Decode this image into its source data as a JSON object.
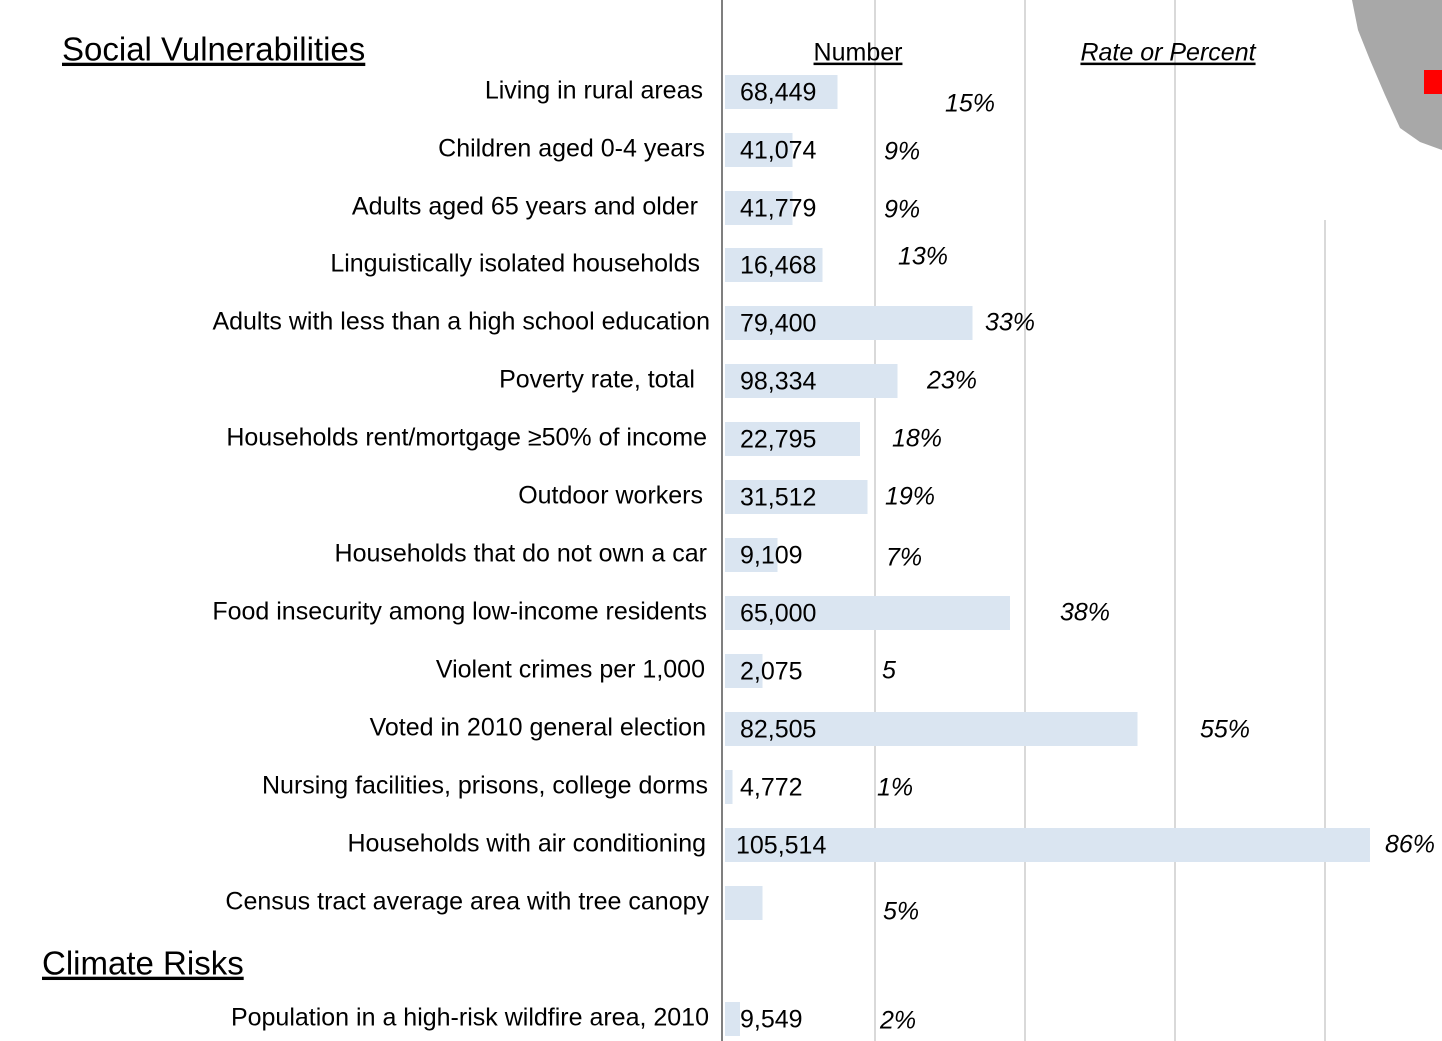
{
  "chart_data": {
    "type": "bar",
    "sections": [
      {
        "title": "Social Vulnerabilities"
      },
      {
        "title": "Climate Risks"
      }
    ],
    "column_headers": [
      "Number",
      "Rate or Percent"
    ],
    "xlim": [
      0,
      95.6
    ],
    "gridlines": [
      20,
      40,
      60,
      80
    ],
    "color": "#dae5f1",
    "rows": [
      {
        "label": "Living in rural areas",
        "number": "68,449",
        "rate": 15,
        "rate_label": "15%"
      },
      {
        "label": "Children aged 0-4 years",
        "number": "41,074",
        "rate": 9,
        "rate_label": "9%"
      },
      {
        "label": "Adults aged 65 years and older",
        "number": "41,779",
        "rate": 9,
        "rate_label": "9%"
      },
      {
        "label": "Linguistically isolated households",
        "number": "16,468",
        "rate": 13,
        "rate_label": "13%"
      },
      {
        "label": "Adults with less than a high school education",
        "number": "79,400",
        "rate": 33,
        "rate_label": "33%"
      },
      {
        "label": "Poverty rate, total",
        "number": "98,334",
        "rate": 23,
        "rate_label": "23%"
      },
      {
        "label": "Households rent/mortgage ≥50% of income",
        "number": "22,795",
        "rate": 18,
        "rate_label": "18%"
      },
      {
        "label": "Outdoor workers",
        "number": "31,512",
        "rate": 19,
        "rate_label": "19%"
      },
      {
        "label": "Households that do not own a car",
        "number": "9,109",
        "rate": 7,
        "rate_label": "7%"
      },
      {
        "label": "Food insecurity among low-income residents",
        "number": "65,000",
        "rate": 38,
        "rate_label": "38%"
      },
      {
        "label": "Violent crimes per 1,000",
        "number": "2,075",
        "rate": 5,
        "rate_label": "5"
      },
      {
        "label": "Voted in 2010 general election",
        "number": "82,505",
        "rate": 55,
        "rate_label": "55%"
      },
      {
        "label": "Nursing facilities, prisons, college dorms",
        "number": "4,772",
        "rate": 1,
        "rate_label": "1%"
      },
      {
        "label": "Households with air conditioning",
        "number": "105,514",
        "rate": 86,
        "rate_label": "86%"
      },
      {
        "label": "Census tract average area with tree canopy",
        "number": null,
        "rate": 5,
        "rate_label": "5%"
      },
      {
        "label": "Population in a high-risk wildfire area, 2010",
        "number": "9,549",
        "rate": 2,
        "rate_label": "2%"
      }
    ]
  }
}
